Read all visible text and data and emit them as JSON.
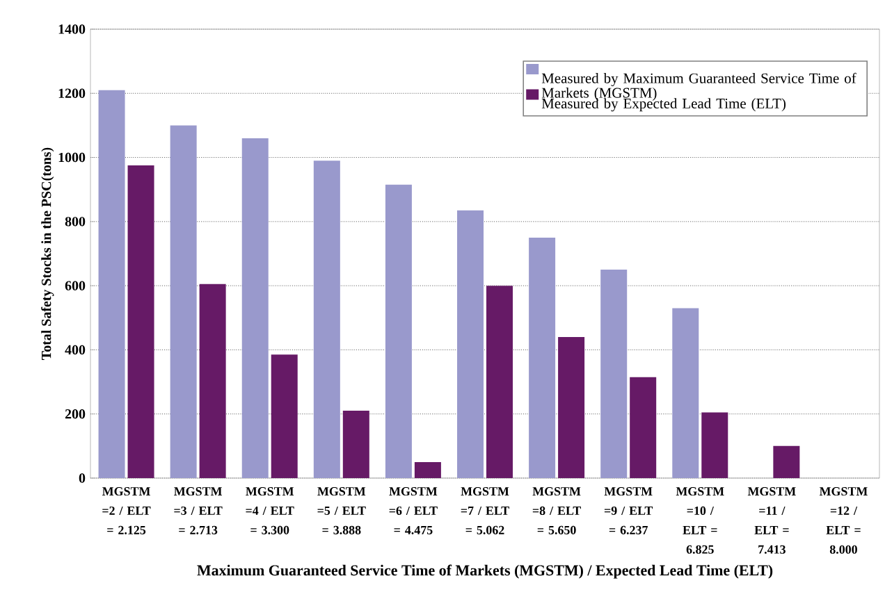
{
  "chart_data": {
    "type": "bar",
    "xlabel": "Maximum Guaranteed Service Time of Markets (MGSTM) / Expected Lead Time (ELT)",
    "ylabel": "Total Safety Stocks in the PSC(tons)",
    "categories": [
      "MGSTM =2 / ELT = 2.125",
      "MGSTM =3 / ELT = 2.713",
      "MGSTM =4 / ELT = 3.300",
      "MGSTM =5 / ELT = 3.888",
      "MGSTM =6 / ELT = 4.475",
      "MGSTM =7 / ELT = 5.062",
      "MGSTM =8 / ELT = 5.650",
      "MGSTM =9 / ELT = 6.237",
      "MGSTM =10 / ELT = 6.825",
      "MGSTM =11 / ELT = 7.413",
      "MGSTM =12 / ELT = 8.000"
    ],
    "series": [
      {
        "name": "Measured by Maximum Guaranteed Service Time of Markets (MGSTM)",
        "color": "#9999cc",
        "values": [
          1210,
          1100,
          1060,
          990,
          915,
          835,
          750,
          650,
          530,
          0,
          0
        ]
      },
      {
        "name": "Measured by Expected Lead Time (ELT)",
        "color": "#661a66",
        "values": [
          975,
          605,
          385,
          210,
          50,
          600,
          440,
          315,
          205,
          100,
          0
        ]
      }
    ],
    "ylim": [
      0,
      1400
    ],
    "yticks": [
      0,
      200,
      400,
      600,
      800,
      1000,
      1200,
      1400
    ],
    "grid": "y",
    "legend": "top right"
  }
}
